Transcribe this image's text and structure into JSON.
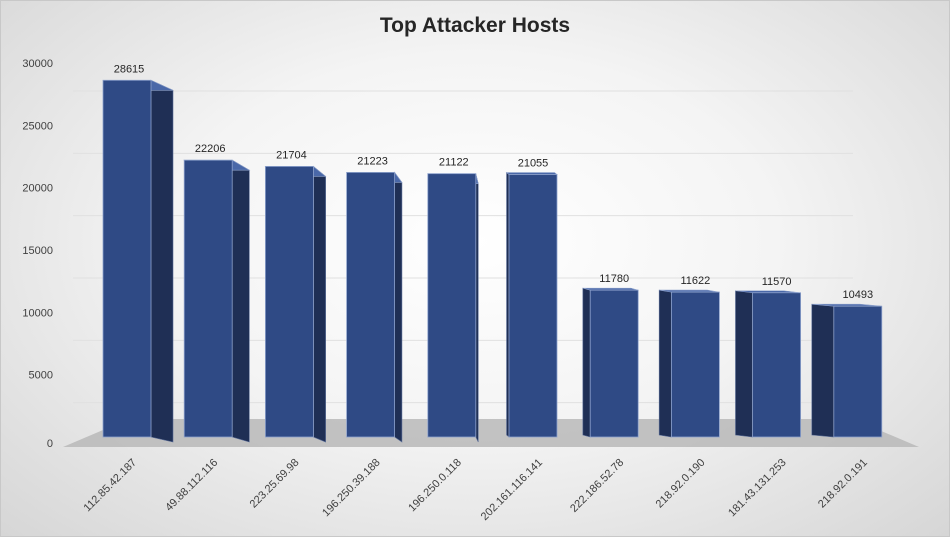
{
  "chart_data": {
    "type": "bar",
    "title": "Top Attacker Hosts",
    "categories": [
      "112.85.42.187",
      "49.88.112.116",
      "223.25.69.98",
      "196.250.39.188",
      "196.250.0.118",
      "202.161.116.141",
      "222.186.52.78",
      "218.92.0.190",
      "181.43.131.253",
      "218.92.0.191"
    ],
    "values": [
      28615,
      22206,
      21704,
      21223,
      21122,
      21055,
      11780,
      11622,
      11570,
      10493
    ],
    "ylim": [
      0,
      30000
    ],
    "yticks": [
      0,
      5000,
      10000,
      15000,
      20000,
      25000,
      30000
    ],
    "grid": true,
    "legend": "none",
    "style": "3d-column",
    "colors": {
      "bar_front": "#2f4a85",
      "bar_side": "#1f2f55",
      "bar_top": "#4a68a8",
      "floor": "#b9b9b9"
    }
  }
}
